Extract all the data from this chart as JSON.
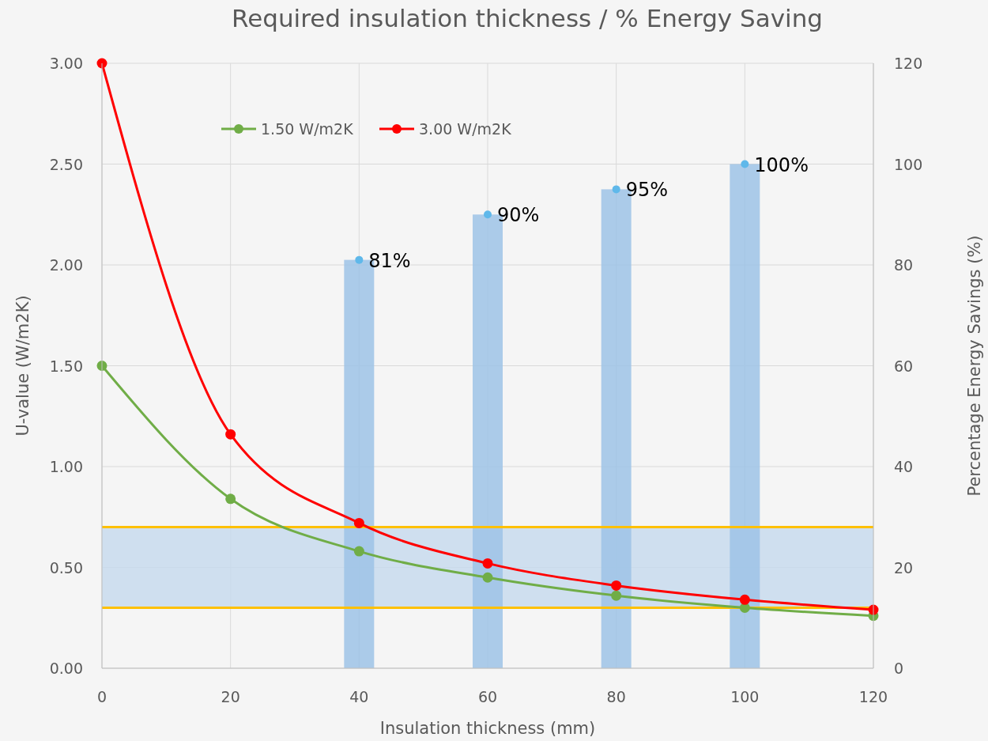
{
  "chart_data": {
    "type": "line",
    "title": "Required insulation thickness / % Energy Saving",
    "xlabel": "Insulation thickness (mm)",
    "ylabel": "U-value (W/m2K)",
    "y2label": "Percentage Energy Savings (%)",
    "xlim": [
      0,
      120
    ],
    "xticks": [
      0,
      20,
      40,
      60,
      80,
      100,
      120
    ],
    "ylim": [
      0,
      3
    ],
    "yticks": [
      {
        "value": 0,
        "label": "0.00"
      },
      {
        "value": 0.5,
        "label": "0.50"
      },
      {
        "value": 1,
        "label": "1.00"
      },
      {
        "value": 1.5,
        "label": "1.50"
      },
      {
        "value": 2,
        "label": "2.00"
      },
      {
        "value": 2.5,
        "label": "2.50"
      },
      {
        "value": 3,
        "label": "3.00"
      }
    ],
    "y2lim": [
      0,
      120
    ],
    "y2ticks": [
      0,
      20,
      40,
      60,
      80,
      100,
      120
    ],
    "grid": true,
    "legend": "top left",
    "marker": "circle",
    "line_style": "solid",
    "series": [
      {
        "type": "bar",
        "axis": "y2",
        "color": "#9dc3e6",
        "x": [
          40,
          60,
          80,
          100
        ],
        "values": [
          81,
          90,
          95,
          100
        ]
      },
      {
        "type": "scatter",
        "axis": "y2",
        "color": "#5fb8ea",
        "x": [
          40,
          60,
          80,
          100
        ],
        "values": [
          81,
          90,
          95,
          100
        ],
        "value_labels": [
          "81%",
          "90%",
          "95%",
          "100%"
        ]
      },
      {
        "name": "1.50 W/m2K",
        "color": "#70ad47",
        "x": [
          0,
          20,
          40,
          60,
          80,
          100,
          120
        ],
        "values": [
          1.5,
          0.84,
          0.58,
          0.45,
          0.36,
          0.3,
          0.26
        ]
      },
      {
        "name": "3.00 W/m2K",
        "color": "#ff0000",
        "x": [
          0,
          20,
          40,
          60,
          80,
          100,
          120
        ],
        "values": [
          3,
          1.16,
          0.72,
          0.52,
          0.41,
          0.34,
          0.29
        ]
      }
    ],
    "bands": [
      {
        "axis": "y",
        "from": 0.3,
        "to": 0.7,
        "color": "#c5d9ee"
      }
    ],
    "ref_lines": [
      {
        "axis": "y",
        "value": 0.3,
        "color": "#ffc000"
      },
      {
        "axis": "y",
        "value": 0.7,
        "color": "#ffc000"
      }
    ]
  }
}
